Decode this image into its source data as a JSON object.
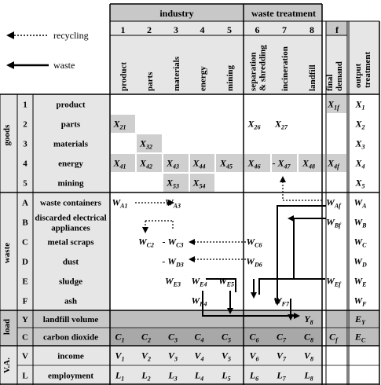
{
  "legend": {
    "recycling": "recycling",
    "waste": "waste"
  },
  "headers": {
    "industry": "industry",
    "waste_treatment": "waste treatment",
    "col_f": "f",
    "col_numbers": [
      "1",
      "2",
      "3",
      "4",
      "5",
      "6",
      "7",
      "8"
    ],
    "industry_columns": [
      "product",
      "parts",
      "materials",
      "energy",
      "mining"
    ],
    "waste_columns": [
      "separation & shredding",
      "incineration",
      "landfill"
    ],
    "final_demand": "final demand",
    "output_treatment": "output treatment"
  },
  "sections": {
    "goods": "goods",
    "waste": "waste",
    "load": "load",
    "va": "V.A."
  },
  "rows": [
    {
      "code": "1",
      "label": "product"
    },
    {
      "code": "2",
      "label": "parts"
    },
    {
      "code": "3",
      "label": "materials"
    },
    {
      "code": "4",
      "label": "energy"
    },
    {
      "code": "5",
      "label": "mining"
    },
    {
      "code": "A",
      "label": "waste containers"
    },
    {
      "code": "B",
      "label": "discarded electrical appliances"
    },
    {
      "code": "C",
      "label": "metal scraps"
    },
    {
      "code": "D",
      "label": "dust"
    },
    {
      "code": "E",
      "label": "sludge"
    },
    {
      "code": "F",
      "label": "ash"
    },
    {
      "code": "Y",
      "label": "landfill volume"
    },
    {
      "code": "C",
      "label": "carbon dioxide"
    },
    {
      "code": "V",
      "label": "income"
    },
    {
      "code": "L",
      "label": "employment"
    }
  ],
  "cells": [
    {
      "r": 0,
      "c": "f",
      "m": "X",
      "s": "1f",
      "shade": true
    },
    {
      "r": 0,
      "c": "o",
      "m": "X",
      "s": "1"
    },
    {
      "r": 1,
      "c": 0,
      "m": "X",
      "s": "21",
      "shade": true
    },
    {
      "r": 1,
      "c": 5,
      "m": "X",
      "s": "26"
    },
    {
      "r": 1,
      "c": 6,
      "m": "X",
      "s": "27"
    },
    {
      "r": 1,
      "c": "o",
      "m": "X",
      "s": "2"
    },
    {
      "r": 2,
      "c": 1,
      "m": "X",
      "s": "32",
      "shade": true
    },
    {
      "r": 2,
      "c": "o",
      "m": "X",
      "s": "3"
    },
    {
      "r": 3,
      "c": 0,
      "m": "X",
      "s": "41",
      "shade": true
    },
    {
      "r": 3,
      "c": 1,
      "m": "X",
      "s": "42",
      "shade": true
    },
    {
      "r": 3,
      "c": 2,
      "m": "X",
      "s": "43",
      "shade": true
    },
    {
      "r": 3,
      "c": 3,
      "m": "X",
      "s": "44",
      "shade": true
    },
    {
      "r": 3,
      "c": 4,
      "m": "X",
      "s": "45",
      "shade": true
    },
    {
      "r": 3,
      "c": 5,
      "m": "X",
      "s": "46",
      "shade": true
    },
    {
      "r": 3,
      "c": 6,
      "m": "X",
      "s": "47",
      "shade": true,
      "dash": true
    },
    {
      "r": 3,
      "c": 7,
      "m": "X",
      "s": "48",
      "shade": true
    },
    {
      "r": 3,
      "c": "f",
      "m": "X",
      "s": "4f",
      "shade": true
    },
    {
      "r": 3,
      "c": "o",
      "m": "X",
      "s": "4"
    },
    {
      "r": 4,
      "c": 2,
      "m": "X",
      "s": "53",
      "shade": true
    },
    {
      "r": 4,
      "c": 3,
      "m": "X",
      "s": "54",
      "shade": true
    },
    {
      "r": 4,
      "c": "o",
      "m": "X",
      "s": "5"
    },
    {
      "r": 5,
      "c": 0,
      "m": "W",
      "s": "A1"
    },
    {
      "r": 5,
      "c": 2,
      "m": "W",
      "s": "A3"
    },
    {
      "r": 5,
      "c": "f",
      "m": "W",
      "s": "Af"
    },
    {
      "r": 5,
      "c": "o",
      "m": "W",
      "s": "A"
    },
    {
      "r": 6,
      "c": "f",
      "m": "W",
      "s": "Bf"
    },
    {
      "r": 6,
      "c": "o",
      "m": "W",
      "s": "B"
    },
    {
      "r": 7,
      "c": 1,
      "m": "W",
      "s": "C2"
    },
    {
      "r": 7,
      "c": 2,
      "m": "W",
      "s": "C3",
      "dash": true
    },
    {
      "r": 7,
      "c": 5,
      "m": "W",
      "s": "C6"
    },
    {
      "r": 7,
      "c": "o",
      "m": "W",
      "s": "C"
    },
    {
      "r": 8,
      "c": 2,
      "m": "W",
      "s": "D3",
      "dash": true
    },
    {
      "r": 8,
      "c": 5,
      "m": "W",
      "s": "D6"
    },
    {
      "r": 8,
      "c": "o",
      "m": "W",
      "s": "D"
    },
    {
      "r": 9,
      "c": 2,
      "m": "W",
      "s": "E3"
    },
    {
      "r": 9,
      "c": 3,
      "m": "W",
      "s": "E4"
    },
    {
      "r": 9,
      "c": 4,
      "m": "W",
      "s": "E5"
    },
    {
      "r": 9,
      "c": "f",
      "m": "W",
      "s": "Ef"
    },
    {
      "r": 9,
      "c": "o",
      "m": "W",
      "s": "E"
    },
    {
      "r": 10,
      "c": 3,
      "m": "W",
      "s": "F4"
    },
    {
      "r": 10,
      "c": 6,
      "m": "W",
      "s": "F7"
    },
    {
      "r": 10,
      "c": "o",
      "m": "W",
      "s": "F"
    },
    {
      "r": 11,
      "c": 7,
      "m": "Y",
      "s": "8"
    },
    {
      "r": 11,
      "c": "o",
      "m": "E",
      "s": "Y"
    },
    {
      "r": 12,
      "c": 0,
      "m": "C",
      "s": "1"
    },
    {
      "r": 12,
      "c": 1,
      "m": "C",
      "s": "2"
    },
    {
      "r": 12,
      "c": 2,
      "m": "C",
      "s": "3"
    },
    {
      "r": 12,
      "c": 3,
      "m": "C",
      "s": "4"
    },
    {
      "r": 12,
      "c": 4,
      "m": "C",
      "s": "5"
    },
    {
      "r": 12,
      "c": 5,
      "m": "C",
      "s": "6"
    },
    {
      "r": 12,
      "c": 6,
      "m": "C",
      "s": "7"
    },
    {
      "r": 12,
      "c": 7,
      "m": "C",
      "s": "8"
    },
    {
      "r": 12,
      "c": "f",
      "m": "C",
      "s": "f"
    },
    {
      "r": 12,
      "c": "o",
      "m": "E",
      "s": "C"
    },
    {
      "r": 13,
      "c": 0,
      "m": "V",
      "s": "1"
    },
    {
      "r": 13,
      "c": 1,
      "m": "V",
      "s": "2"
    },
    {
      "r": 13,
      "c": 2,
      "m": "V",
      "s": "3"
    },
    {
      "r": 13,
      "c": 3,
      "m": "V",
      "s": "4"
    },
    {
      "r": 13,
      "c": 4,
      "m": "V",
      "s": "5"
    },
    {
      "r": 13,
      "c": 5,
      "m": "V",
      "s": "6"
    },
    {
      "r": 13,
      "c": 6,
      "m": "V",
      "s": "7"
    },
    {
      "r": 13,
      "c": 7,
      "m": "V",
      "s": "8"
    },
    {
      "r": 14,
      "c": 0,
      "m": "L",
      "s": "1"
    },
    {
      "r": 14,
      "c": 1,
      "m": "L",
      "s": "2"
    },
    {
      "r": 14,
      "c": 2,
      "m": "L",
      "s": "3"
    },
    {
      "r": 14,
      "c": 3,
      "m": "L",
      "s": "4"
    },
    {
      "r": 14,
      "c": 4,
      "m": "L",
      "s": "5"
    },
    {
      "r": 14,
      "c": 5,
      "m": "L",
      "s": "6"
    },
    {
      "r": 14,
      "c": 6,
      "m": "L",
      "s": "7"
    },
    {
      "r": 14,
      "c": 7,
      "m": "L",
      "s": "8"
    }
  ],
  "colors": {
    "header_gray": "#c8c8c8",
    "light_gray": "#e6e6e6",
    "cell_gray": "#cfcfcf",
    "line": "#000000"
  }
}
